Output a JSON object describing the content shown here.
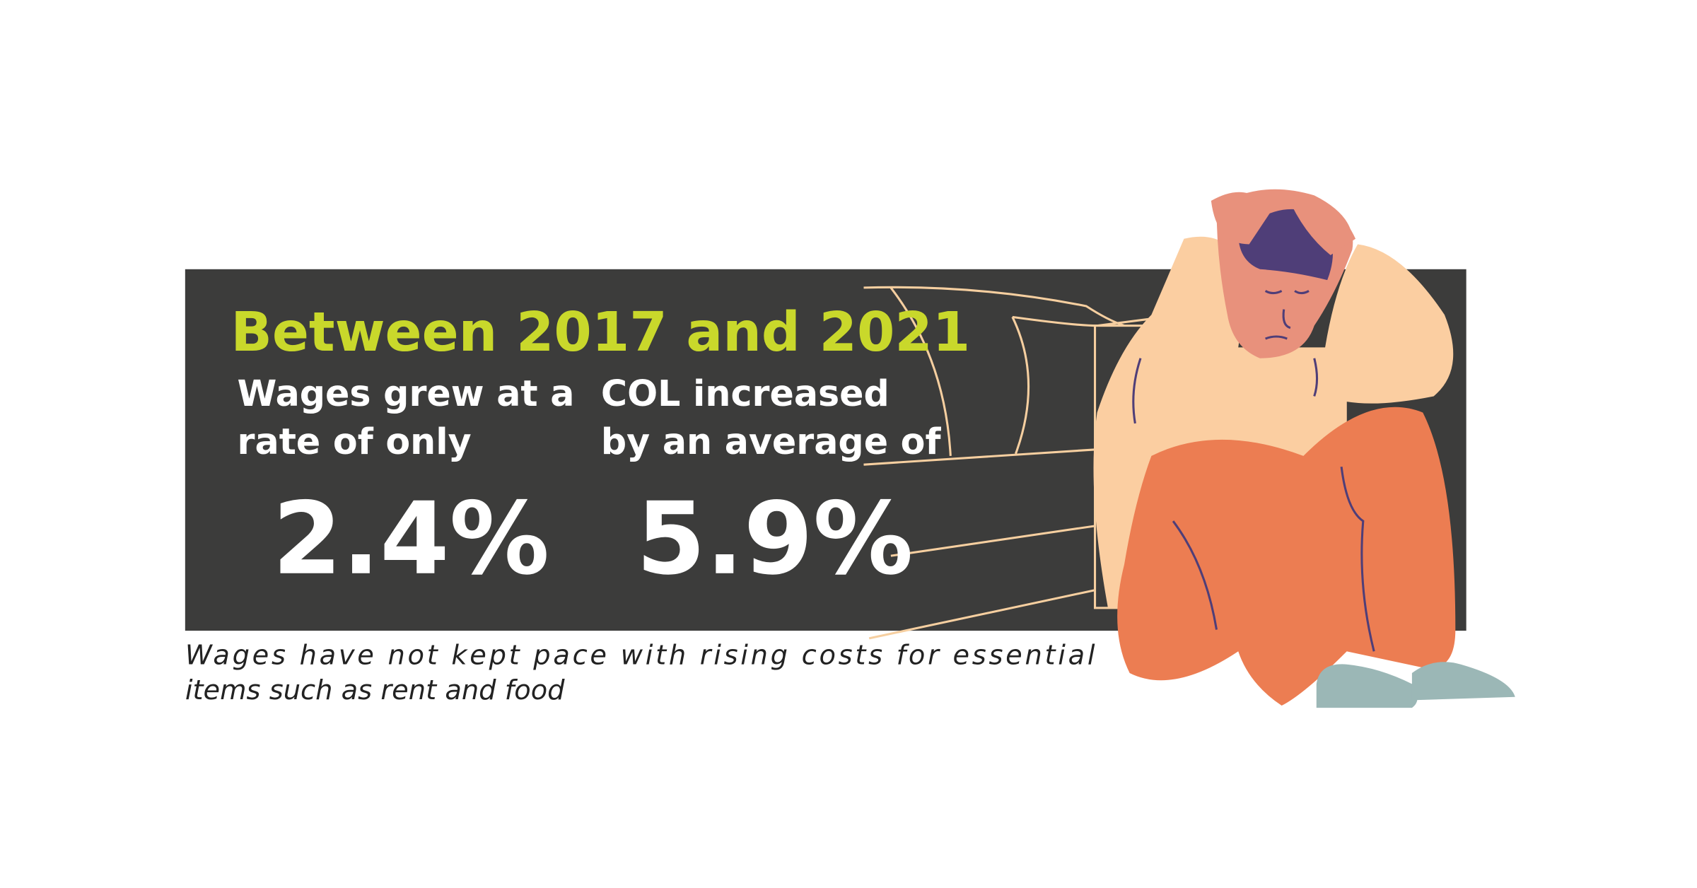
{
  "title": "Between 2017 and 2021",
  "stats": [
    {
      "label_lines": [
        "Wages grew at a",
        "rate of only"
      ],
      "value": "2.4%"
    },
    {
      "label_lines": [
        "COL increased",
        "by an average of"
      ],
      "value": "5.9%"
    }
  ],
  "caption": {
    "lines": [
      "Wages have not kept pace with rising costs for essential",
      "items such as rent and food"
    ]
  }
}
